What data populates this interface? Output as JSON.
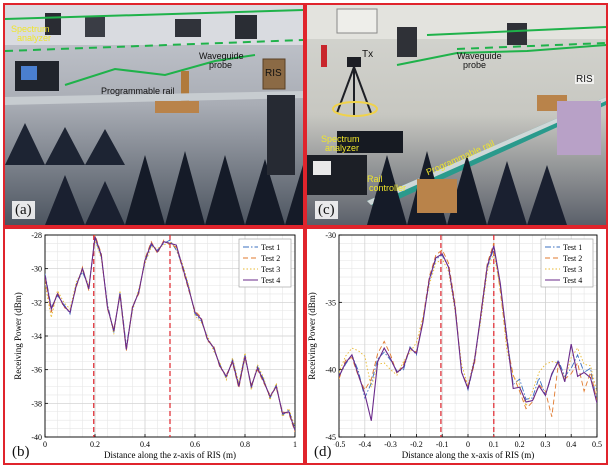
{
  "panels": {
    "a": {
      "label": "(a)",
      "annotations": {
        "spectrum": [
          "Spectrum",
          "analyzer"
        ],
        "waveguide": [
          "Waveguide",
          "probe"
        ],
        "ris": "RIS",
        "rail": "Programmable rail"
      }
    },
    "c": {
      "label": "(c)",
      "annotations": {
        "tx": "Tx",
        "waveguide": [
          "Waveguide",
          "probe"
        ],
        "ris": "RIS",
        "spectrum": [
          "Spectrum",
          "analyzer"
        ],
        "controller": [
          "Rail",
          "controller"
        ],
        "rail": "Programmable rail"
      }
    },
    "b": {
      "label": "(b)"
    },
    "d": {
      "label": "(d)"
    }
  },
  "colors": {
    "test1": "#3a6fbf",
    "test2": "#e07a2e",
    "test3": "#e8b830",
    "test4": "#6a2a8a",
    "marker": "#e0242c",
    "border": "#e0242c"
  },
  "chart_data": [
    {
      "panel": "b",
      "type": "line",
      "xlabel": "Distance along the z-axis of RIS (m)",
      "ylabel": "Receiving Power (dBm)",
      "xlim": [
        0,
        1
      ],
      "ylim": [
        -40,
        -28
      ],
      "xticks": [
        0,
        0.2,
        0.4,
        0.6,
        0.8,
        1
      ],
      "xticklabels": [
        "0",
        "0.2",
        "0.4",
        "0.6",
        "0.8",
        "1"
      ],
      "yticks": [
        -40,
        -38,
        -36,
        -34,
        -32,
        -30,
        -28
      ],
      "yticklabels": [
        "-40",
        "-38",
        "-36",
        "-34",
        "-32",
        "-30",
        "-28"
      ],
      "grid": true,
      "legend": "top-right",
      "markers": [
        0.195,
        0.5
      ],
      "x": [
        0,
        0.025,
        0.05,
        0.075,
        0.1,
        0.125,
        0.15,
        0.175,
        0.2,
        0.225,
        0.25,
        0.275,
        0.3,
        0.325,
        0.35,
        0.375,
        0.4,
        0.425,
        0.45,
        0.475,
        0.5,
        0.525,
        0.55,
        0.575,
        0.6,
        0.625,
        0.65,
        0.675,
        0.7,
        0.725,
        0.75,
        0.775,
        0.8,
        0.825,
        0.85,
        0.875,
        0.9,
        0.925,
        0.95,
        0.975,
        1
      ],
      "series": [
        {
          "name": "Test 1",
          "style": "dashdot",
          "values": [
            -30.3,
            -32.3,
            -31.6,
            -32.1,
            -32.7,
            -30.9,
            -30.2,
            -31.1,
            -28.2,
            -29.3,
            -32.1,
            -33.8,
            -31.4,
            -34.6,
            -32.4,
            -31.3,
            -29.6,
            -28.6,
            -28.9,
            -28.5,
            -28.3,
            -28.9,
            -29.8,
            -31.1,
            -32.7,
            -33.1,
            -34.1,
            -34.8,
            -35.7,
            -36.5,
            -35.4,
            -36.9,
            -35.1,
            -37.1,
            -35.8,
            -36.6,
            -37.7,
            -36.9,
            -38.7,
            -38.4,
            -39.5
          ]
        },
        {
          "name": "Test 2",
          "style": "dashed",
          "values": [
            -30.6,
            -32.6,
            -31.4,
            -32.3,
            -32.5,
            -31.1,
            -29.9,
            -31.3,
            -28.0,
            -29.1,
            -32.4,
            -33.6,
            -31.6,
            -34.9,
            -32.2,
            -31.5,
            -29.4,
            -28.4,
            -29.1,
            -28.3,
            -28.6,
            -28.7,
            -30.0,
            -31.3,
            -32.5,
            -32.9,
            -34.3,
            -34.6,
            -35.9,
            -36.3,
            -35.6,
            -37.1,
            -35.3,
            -36.9,
            -36.0,
            -36.8,
            -37.5,
            -37.1,
            -38.5,
            -38.6,
            -39.7
          ]
        },
        {
          "name": "Test 3",
          "style": "dotted",
          "values": [
            -30.9,
            -32.9,
            -31.3,
            -32.0,
            -32.4,
            -30.8,
            -30.1,
            -31.0,
            -28.3,
            -29.4,
            -32.2,
            -33.9,
            -31.3,
            -34.7,
            -32.5,
            -31.2,
            -29.7,
            -28.7,
            -28.8,
            -28.6,
            -28.4,
            -28.8,
            -29.7,
            -31.0,
            -32.8,
            -33.2,
            -34.0,
            -34.9,
            -35.6,
            -36.6,
            -35.3,
            -36.8,
            -35.0,
            -37.2,
            -35.7,
            -36.5,
            -37.8,
            -36.8,
            -38.8,
            -38.3,
            -39.4
          ]
        },
        {
          "name": "Test 4",
          "style": "solid",
          "values": [
            -30.4,
            -32.4,
            -31.5,
            -32.2,
            -32.6,
            -31.0,
            -30.0,
            -31.2,
            -28.1,
            -29.2,
            -32.3,
            -33.7,
            -31.5,
            -34.8,
            -32.3,
            -31.4,
            -29.5,
            -28.5,
            -29.0,
            -28.4,
            -28.5,
            -28.6,
            -29.9,
            -31.2,
            -32.6,
            -33.0,
            -34.2,
            -34.7,
            -35.8,
            -36.4,
            -35.5,
            -37.0,
            -35.2,
            -37.0,
            -35.9,
            -36.7,
            -37.6,
            -37.0,
            -38.6,
            -38.5,
            -39.6
          ]
        }
      ]
    },
    {
      "panel": "d",
      "type": "line",
      "xlabel": "Distance along the x-axis of RIS (m)",
      "ylabel": "Receiving Power (dBm)",
      "xlim": [
        -0.5,
        0.5
      ],
      "ylim": [
        -45,
        -30
      ],
      "xticks": [
        -0.5,
        -0.4,
        -0.3,
        -0.2,
        -0.1,
        0,
        0.1,
        0.2,
        0.3,
        0.4,
        0.5
      ],
      "xticklabels": [
        "-0.5",
        "-0.4",
        "-0.3",
        "-0.2",
        "-0.1",
        "0",
        "0.1",
        "0.2",
        "0.3",
        "0.4",
        "0.5"
      ],
      "yticks": [
        -45,
        -40,
        -35,
        -30
      ],
      "yticklabels": [
        "-45",
        "-40",
        "-35",
        "-30"
      ],
      "grid": true,
      "legend": "top-right",
      "markers": [
        -0.105,
        0.1
      ],
      "x": [
        -0.5,
        -0.475,
        -0.45,
        -0.425,
        -0.4,
        -0.375,
        -0.35,
        -0.325,
        -0.3,
        -0.275,
        -0.25,
        -0.225,
        -0.2,
        -0.175,
        -0.15,
        -0.125,
        -0.1,
        -0.075,
        -0.05,
        -0.025,
        0,
        0.025,
        0.05,
        0.075,
        0.1,
        0.125,
        0.15,
        0.175,
        0.2,
        0.225,
        0.25,
        0.275,
        0.3,
        0.325,
        0.35,
        0.375,
        0.4,
        0.425,
        0.45,
        0.475,
        0.5
      ],
      "series": [
        {
          "name": "Test 1",
          "style": "dashdot",
          "values": [
            -40.5,
            -39.6,
            -38.9,
            -40.1,
            -42.1,
            -41.0,
            -39.2,
            -38.7,
            -39.3,
            -40.1,
            -40.0,
            -38.3,
            -38.9,
            -36.4,
            -33.4,
            -31.8,
            -31.5,
            -32.4,
            -35.4,
            -40.1,
            -41.5,
            -39.4,
            -36.0,
            -32.4,
            -31.0,
            -33.8,
            -37.4,
            -41.1,
            -40.7,
            -42.2,
            -42.1,
            -40.6,
            -41.9,
            -40.4,
            -39.3,
            -40.5,
            -39.9,
            -38.9,
            -40.2,
            -39.9,
            -42.5
          ]
        },
        {
          "name": "Test 2",
          "style": "dashed",
          "values": [
            -40.7,
            -39.3,
            -39.1,
            -40.5,
            -41.5,
            -40.7,
            -38.8,
            -37.9,
            -38.9,
            -40.3,
            -39.6,
            -38.4,
            -38.7,
            -36.2,
            -33.1,
            -31.5,
            -31.1,
            -32.1,
            -35.1,
            -40.2,
            -41.2,
            -39.6,
            -35.7,
            -32.1,
            -30.6,
            -34.2,
            -38.0,
            -40.4,
            -41.6,
            -42.9,
            -42.4,
            -41.1,
            -41.6,
            -43.5,
            -39.6,
            -40.7,
            -40.3,
            -39.5,
            -41.6,
            -40.2,
            -42.3
          ]
        },
        {
          "name": "Test 3",
          "style": "dotted",
          "values": [
            -40.2,
            -39.0,
            -38.4,
            -38.6,
            -39.0,
            -41.3,
            -39.6,
            -39.5,
            -40.0,
            -40.4,
            -39.4,
            -38.7,
            -38.0,
            -36.1,
            -33.7,
            -32.1,
            -31.8,
            -32.7,
            -35.7,
            -39.6,
            -41.2,
            -39.1,
            -36.3,
            -32.7,
            -31.3,
            -34.0,
            -38.5,
            -40.5,
            -41.1,
            -42.7,
            -41.6,
            -40.2,
            -39.6,
            -39.4,
            -39.5,
            -40.7,
            -39.1,
            -38.4,
            -39.6,
            -39.7,
            -41.7
          ]
        },
        {
          "name": "Test 4",
          "style": "solid",
          "values": [
            -40.5,
            -39.5,
            -38.9,
            -40.4,
            -41.8,
            -43.8,
            -39.4,
            -38.4,
            -39.2,
            -40.2,
            -39.8,
            -38.4,
            -38.8,
            -36.5,
            -33.3,
            -31.7,
            -31.4,
            -32.4,
            -35.4,
            -40.2,
            -41.4,
            -39.3,
            -35.9,
            -32.3,
            -30.8,
            -33.6,
            -37.6,
            -41.4,
            -41.3,
            -42.4,
            -42.3,
            -41.2,
            -41.9,
            -40.3,
            -39.4,
            -40.9,
            -38.1,
            -40.5,
            -40.2,
            -40.6,
            -42.5
          ]
        }
      ]
    }
  ]
}
